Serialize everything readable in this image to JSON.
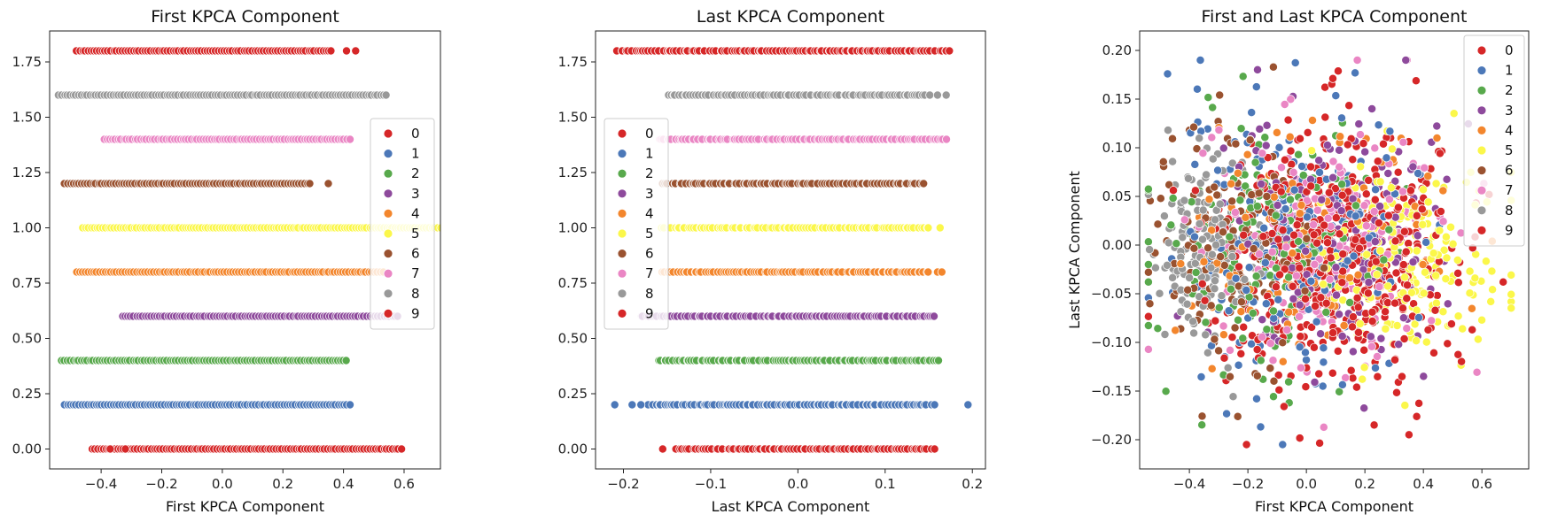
{
  "chart_data": [
    {
      "type": "scatter",
      "title": "First KPCA Component",
      "xlabel": "First KPCA Component",
      "ylabel": "",
      "xlim": [
        -0.57,
        0.72
      ],
      "ylim": [
        -0.09,
        1.89
      ],
      "xticks": [
        -0.4,
        -0.2,
        0.0,
        0.2,
        0.4,
        0.6
      ],
      "xtick_labels": [
        "−0.4",
        "−0.2",
        "0.0",
        "0.2",
        "0.4",
        "0.6"
      ],
      "yticks": [
        0.0,
        0.25,
        0.5,
        0.75,
        1.0,
        1.25,
        1.5,
        1.75
      ],
      "ytick_labels": [
        "0.00",
        "0.25",
        "0.50",
        "0.75",
        "1.00",
        "1.25",
        "1.50",
        "1.75"
      ],
      "legend": {
        "position": "right",
        "labels": [
          "0",
          "1",
          "2",
          "3",
          "4",
          "5",
          "6",
          "7",
          "8",
          "9"
        ]
      },
      "series": [
        {
          "name": "0",
          "y": 0.0,
          "x_range": [
            -0.43,
            0.59
          ],
          "outliers": [
            -0.37,
            -0.32
          ]
        },
        {
          "name": "1",
          "y": 0.2,
          "x_range": [
            -0.52,
            0.42
          ],
          "outliers": []
        },
        {
          "name": "2",
          "y": 0.4,
          "x_range": [
            -0.53,
            0.41
          ],
          "outliers": []
        },
        {
          "name": "3",
          "y": 0.6,
          "x_range": [
            -0.33,
            0.58
          ],
          "outliers": []
        },
        {
          "name": "4",
          "y": 0.8,
          "x_range": [
            -0.48,
            0.53
          ],
          "outliers": []
        },
        {
          "name": "5",
          "y": 1.0,
          "x_range": [
            -0.46,
            0.72
          ],
          "outliers": []
        },
        {
          "name": "6",
          "y": 1.2,
          "x_range": [
            -0.52,
            0.29
          ],
          "outliers": [
            0.35
          ]
        },
        {
          "name": "7",
          "y": 1.4,
          "x_range": [
            -0.39,
            0.42
          ],
          "outliers": []
        },
        {
          "name": "8",
          "y": 1.6,
          "x_range": [
            -0.54,
            0.54
          ],
          "outliers": []
        },
        {
          "name": "9",
          "y": 1.8,
          "x_range": [
            -0.48,
            0.36
          ],
          "outliers": [
            0.41,
            0.44
          ]
        }
      ]
    },
    {
      "type": "scatter",
      "title": "Last KPCA Component",
      "xlabel": "Last KPCA Component",
      "ylabel": "",
      "xlim": [
        -0.232,
        0.215
      ],
      "ylim": [
        -0.09,
        1.89
      ],
      "xticks": [
        -0.2,
        -0.1,
        0.0,
        0.1,
        0.2
      ],
      "xtick_labels": [
        "−0.2",
        "−0.1",
        "0.0",
        "0.1",
        "0.2"
      ],
      "yticks": [
        0.0,
        0.25,
        0.5,
        0.75,
        1.0,
        1.25,
        1.5,
        1.75
      ],
      "ytick_labels": [
        "0.00",
        "0.25",
        "0.50",
        "0.75",
        "1.00",
        "1.25",
        "1.50",
        "1.75"
      ],
      "legend": {
        "position": "left",
        "labels": [
          "0",
          "1",
          "2",
          "3",
          "4",
          "5",
          "6",
          "7",
          "8",
          "9"
        ]
      },
      "series": [
        {
          "name": "0",
          "y": 0.0,
          "x_range": [
            -0.14,
            0.155
          ],
          "outliers": [
            -0.155
          ]
        },
        {
          "name": "1",
          "y": 0.2,
          "x_range": [
            -0.17,
            0.155
          ],
          "outliers": [
            -0.21,
            -0.19,
            -0.18,
            0.195
          ]
        },
        {
          "name": "2",
          "y": 0.4,
          "x_range": [
            -0.16,
            0.162
          ],
          "outliers": []
        },
        {
          "name": "3",
          "y": 0.6,
          "x_range": [
            -0.18,
            0.158
          ],
          "outliers": []
        },
        {
          "name": "4",
          "y": 0.8,
          "x_range": [
            -0.155,
            0.15
          ],
          "outliers": [
            0.16,
            0.165
          ]
        },
        {
          "name": "5",
          "y": 1.0,
          "x_range": [
            -0.155,
            0.15
          ],
          "outliers": [
            0.163
          ]
        },
        {
          "name": "6",
          "y": 1.2,
          "x_range": [
            -0.155,
            0.145
          ],
          "outliers": []
        },
        {
          "name": "7",
          "y": 1.4,
          "x_range": [
            -0.16,
            0.17
          ],
          "outliers": []
        },
        {
          "name": "8",
          "y": 1.6,
          "x_range": [
            -0.15,
            0.15
          ],
          "outliers": [
            0.16,
            0.17
          ]
        },
        {
          "name": "9",
          "y": 1.8,
          "x_range": [
            -0.21,
            0.175
          ],
          "outliers": []
        }
      ]
    },
    {
      "type": "scatter",
      "title": "First and Last KPCA Component",
      "xlabel": "First KPCA Component",
      "ylabel": "Last KPCA Component",
      "xlim": [
        -0.57,
        0.76
      ],
      "ylim": [
        -0.23,
        0.22
      ],
      "xticks": [
        -0.4,
        -0.2,
        0.0,
        0.2,
        0.4,
        0.6
      ],
      "xtick_labels": [
        "−0.4",
        "−0.2",
        "0.0",
        "0.2",
        "0.4",
        "0.6"
      ],
      "yticks": [
        -0.2,
        -0.15,
        -0.1,
        -0.05,
        0.0,
        0.05,
        0.1,
        0.15,
        0.2
      ],
      "ytick_labels": [
        "−0.20",
        "−0.15",
        "−0.10",
        "−0.05",
        "0.00",
        "0.05",
        "0.10",
        "0.15",
        "0.20"
      ],
      "legend": {
        "position": "upper right",
        "labels": [
          "0",
          "1",
          "2",
          "3",
          "4",
          "5",
          "6",
          "7",
          "8",
          "9"
        ]
      },
      "series": [
        {
          "name": "0",
          "center": [
            0.05,
            -0.02
          ],
          "spread": [
            0.5,
            0.15
          ]
        },
        {
          "name": "1",
          "center": [
            -0.05,
            0.0
          ],
          "spread": [
            0.45,
            0.17
          ]
        },
        {
          "name": "2",
          "center": [
            -0.1,
            0.0
          ],
          "spread": [
            0.45,
            0.15
          ]
        },
        {
          "name": "3",
          "center": [
            0.1,
            0.0
          ],
          "spread": [
            0.4,
            0.15
          ]
        },
        {
          "name": "4",
          "center": [
            0.0,
            0.0
          ],
          "spread": [
            0.45,
            0.15
          ]
        },
        {
          "name": "5",
          "center": [
            0.35,
            -0.02
          ],
          "spread": [
            0.35,
            0.13
          ]
        },
        {
          "name": "6",
          "center": [
            -0.25,
            0.0
          ],
          "spread": [
            0.3,
            0.15
          ]
        },
        {
          "name": "7",
          "center": [
            0.1,
            0.0
          ],
          "spread": [
            0.45,
            0.15
          ]
        },
        {
          "name": "8",
          "center": [
            -0.35,
            0.0
          ],
          "spread": [
            0.2,
            0.12
          ]
        },
        {
          "name": "9",
          "center": [
            0.15,
            0.0
          ],
          "spread": [
            0.4,
            0.15
          ]
        }
      ]
    }
  ],
  "palette": [
    "#d62728",
    "#4c78b8",
    "#58a94c",
    "#8e4a9c",
    "#f3862d",
    "#fbf74a",
    "#9a5230",
    "#ea86c4",
    "#999999",
    "#d62728"
  ]
}
